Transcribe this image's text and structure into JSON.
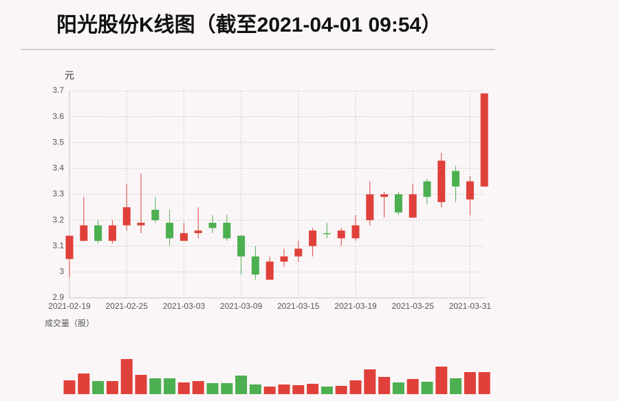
{
  "chart_data": {
    "type": "candlestick",
    "title": "阳光股份K线图（截至2021-04-01 09:54）",
    "y_label": "元",
    "volume_label": "成交量（股）",
    "categories": [
      "2021-02-19",
      null,
      null,
      null,
      "2021-02-25",
      null,
      null,
      null,
      "2021-03-03",
      null,
      null,
      null,
      "2021-03-09",
      null,
      null,
      null,
      "2021-03-15",
      null,
      null,
      null,
      "2021-03-19",
      null,
      null,
      null,
      "2021-03-25",
      null,
      null,
      null,
      "2021-03-31",
      null
    ],
    "open": [
      3.05,
      3.12,
      3.18,
      3.12,
      3.18,
      3.18,
      3.24,
      3.19,
      3.12,
      3.15,
      3.19,
      3.19,
      3.14,
      3.06,
      2.97,
      3.04,
      3.06,
      3.1,
      3.15,
      3.13,
      3.13,
      3.2,
      3.29,
      3.3,
      3.21,
      3.35,
      3.27,
      3.39,
      3.28,
      3.33
    ],
    "high": [
      3.14,
      3.29,
      3.2,
      3.2,
      3.34,
      3.38,
      3.29,
      3.24,
      3.19,
      3.25,
      3.22,
      3.22,
      3.14,
      3.1,
      3.06,
      3.09,
      3.12,
      3.17,
      3.19,
      3.17,
      3.22,
      3.35,
      3.31,
      3.31,
      3.34,
      3.36,
      3.46,
      3.41,
      3.37,
      3.69
    ],
    "low": [
      2.98,
      3.12,
      3.11,
      3.11,
      3.16,
      3.15,
      3.19,
      3.1,
      3.12,
      3.13,
      3.15,
      3.12,
      2.99,
      2.97,
      2.97,
      3.02,
      3.04,
      3.06,
      3.13,
      3.1,
      3.12,
      3.18,
      3.21,
      3.22,
      3.21,
      3.26,
      3.25,
      3.27,
      3.22,
      3.33
    ],
    "close": [
      3.14,
      3.18,
      3.12,
      3.18,
      3.25,
      3.19,
      3.2,
      3.13,
      3.15,
      3.16,
      3.17,
      3.13,
      3.06,
      2.99,
      3.04,
      3.06,
      3.09,
      3.16,
      3.15,
      3.16,
      3.18,
      3.3,
      3.3,
      3.23,
      3.3,
      3.29,
      3.43,
      3.33,
      3.35,
      3.69
    ],
    "volume": [
      20,
      30,
      19,
      19,
      51,
      28,
      23,
      23,
      17,
      19,
      16,
      16,
      27,
      14,
      11,
      14,
      13,
      15,
      11,
      12,
      20,
      36,
      25,
      17,
      22,
      18,
      40,
      23,
      32,
      32
    ],
    "volume_ylim": [
      0,
      55
    ],
    "up_color": "#e0403a",
    "down_color": "#4caf50",
    "ylim": [
      2.9,
      3.7
    ],
    "yticks": [
      2.9,
      3,
      3.1,
      3.2,
      3.3,
      3.4,
      3.5,
      3.6,
      3.7
    ],
    "grid": true
  }
}
